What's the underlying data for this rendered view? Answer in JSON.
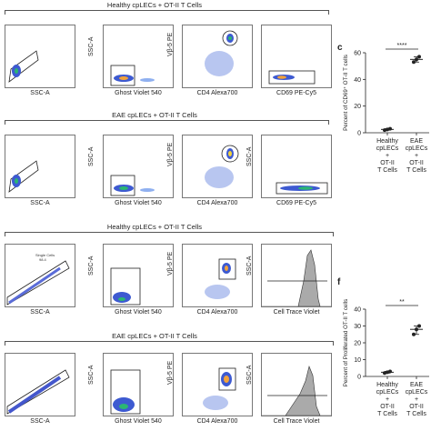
{
  "row_titles": [
    "Healthy cpLECs + OT-II T Cells",
    "EAE cpLECs + OT-II T Cells",
    "Healthy cpLECs + OT-II T Cells",
    "EAE cpLECs + OT-II T Cells"
  ],
  "axis_labels": {
    "ssc_a": "SSC-A",
    "ghost": "Ghost Violet 540",
    "cd4": "CD4 Alexa700",
    "vb5": "Vβ-5 PE",
    "cd69": "CD69 PE-Cy5",
    "trace": "Cell Trace Violet"
  },
  "gate_labels": {
    "single_cells": "Single Cells",
    "single_cells_value": "98.4"
  },
  "panel_letters": [
    "c",
    "f"
  ],
  "chart_data": [
    {
      "type": "scatter",
      "panel": "c",
      "ylabel": "Percent of CD69⁺ OT-II T cells",
      "ylim": [
        0,
        60
      ],
      "yticks": [
        0,
        20,
        40,
        60
      ],
      "categories": [
        "Healthy cpLECs + OT-II T Cells",
        "EAE cpLECs + OT-II T Cells"
      ],
      "category_lines": [
        [
          "Healthy",
          "cpLECs",
          "+",
          "OT-II",
          "T Cells"
        ],
        [
          "EAE",
          "cpLECs",
          "+",
          "OT-II",
          "T Cells"
        ]
      ],
      "points": [
        [
          2,
          2.5,
          3
        ],
        [
          53,
          55,
          57
        ]
      ],
      "means": [
        2.5,
        55
      ],
      "significance": "****"
    },
    {
      "type": "scatter",
      "panel": "f",
      "ylabel": "Percent of Proliferated OT-II T cells",
      "ylim": [
        0,
        40
      ],
      "yticks": [
        0,
        10,
        20,
        30,
        40
      ],
      "categories": [
        "Healthy cpLECs + OT-II T Cells",
        "EAE cpLECs + OT-II T Cells"
      ],
      "category_lines": [
        [
          "Healthy",
          "cpLECs",
          "+",
          "OT-II",
          "T Cells"
        ],
        [
          "EAE",
          "cpLECs",
          "+",
          "OT-II",
          "T Cells"
        ]
      ],
      "points": [
        [
          2,
          2.5,
          3
        ],
        [
          25,
          28,
          30
        ]
      ],
      "means": [
        2.5,
        28
      ],
      "significance": "**"
    }
  ]
}
